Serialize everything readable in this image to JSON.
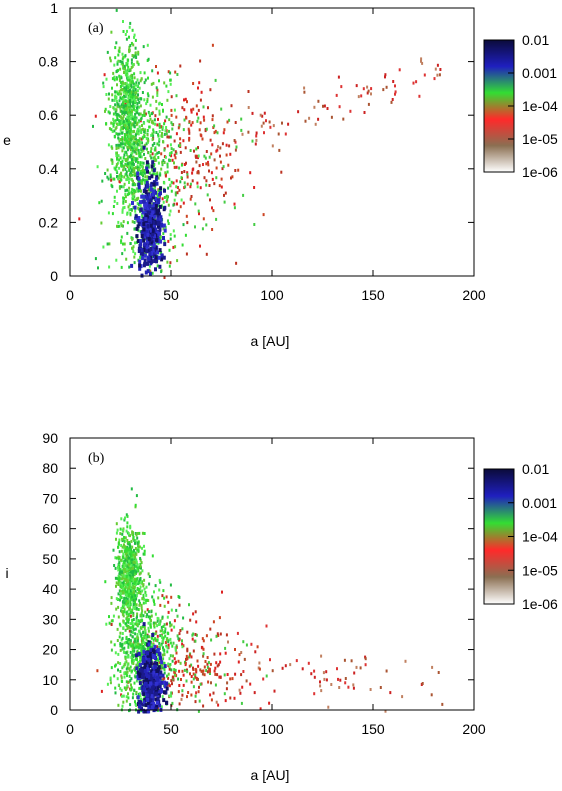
{
  "chart_data": [
    {
      "type": "heatmap",
      "panel_label": "(a)",
      "xlabel": "a [AU]",
      "ylabel": "e",
      "xlim": [
        0,
        200
      ],
      "ylim": [
        0,
        1
      ],
      "xticks": [
        0,
        50,
        100,
        150,
        200
      ],
      "yticks": [
        0,
        0.2,
        0.4,
        0.6,
        0.8,
        1
      ],
      "ytick_labels": [
        "0",
        "0.2",
        "0.4",
        "0.6",
        "0.8",
        "1"
      ],
      "xtick_labels": [
        "0",
        "50",
        "100",
        "150",
        "200"
      ],
      "grid": false,
      "color_scale": "log",
      "colorbar": {
        "placement": "right",
        "ticks": [
          "0.01",
          "0.001",
          "1e-04",
          "1e-05",
          "1e-06"
        ],
        "range": [
          1e-06,
          0.01
        ],
        "colors": [
          "#ffffff",
          "#8b6f52",
          "#ff2a2a",
          "#33dd33",
          "#1f1fbf",
          "#0b0b3a"
        ]
      },
      "clusters": [
        {
          "x_center": 39,
          "y_center": 0.2,
          "x_spread": 3,
          "y_spread": 0.09,
          "density": "1e-02"
        },
        {
          "x_center": 36,
          "y_center": 0.35,
          "x_spread": 8,
          "y_spread": 0.18,
          "density": "1e-04"
        },
        {
          "x_center": 28,
          "y_center": 0.62,
          "x_spread": 4,
          "y_spread": 0.12,
          "density": "1e-04"
        },
        {
          "x_center": 55,
          "y_center": 0.45,
          "x_spread": 15,
          "y_spread": 0.15,
          "density": "1e-05"
        },
        {
          "x_center": 110,
          "y_center": 0.68,
          "x_spread": 40,
          "y_spread": 0.08,
          "density": "1e-06"
        }
      ]
    },
    {
      "type": "heatmap",
      "panel_label": "(b)",
      "xlabel": "a [AU]",
      "ylabel": "i",
      "xlim": [
        0,
        200
      ],
      "ylim": [
        0,
        90
      ],
      "xticks": [
        0,
        50,
        100,
        150,
        200
      ],
      "yticks": [
        0,
        10,
        20,
        30,
        40,
        50,
        60,
        70,
        80,
        90
      ],
      "ytick_labels": [
        "0",
        "10",
        "20",
        "30",
        "40",
        "50",
        "60",
        "70",
        "80",
        "90"
      ],
      "xtick_labels": [
        "0",
        "50",
        "100",
        "150",
        "200"
      ],
      "grid": false,
      "color_scale": "log",
      "colorbar": {
        "placement": "right",
        "ticks": [
          "0.01",
          "0.001",
          "1e-04",
          "1e-05",
          "1e-06"
        ],
        "range": [
          1e-06,
          0.01
        ],
        "colors": [
          "#ffffff",
          "#8b6f52",
          "#ff2a2a",
          "#33dd33",
          "#1f1fbf",
          "#0b0b3a"
        ]
      },
      "clusters": [
        {
          "x_center": 39,
          "y_center": 10,
          "x_spread": 3,
          "y_spread": 6,
          "density": "1e-02"
        },
        {
          "x_center": 36,
          "y_center": 18,
          "x_spread": 7,
          "y_spread": 10,
          "density": "1e-04"
        },
        {
          "x_center": 29,
          "y_center": 45,
          "x_spread": 3,
          "y_spread": 8,
          "density": "1e-04"
        },
        {
          "x_center": 55,
          "y_center": 15,
          "x_spread": 15,
          "y_spread": 9,
          "density": "1e-05"
        },
        {
          "x_center": 110,
          "y_center": 12,
          "x_spread": 40,
          "y_spread": 6,
          "density": "1e-06"
        }
      ]
    }
  ]
}
